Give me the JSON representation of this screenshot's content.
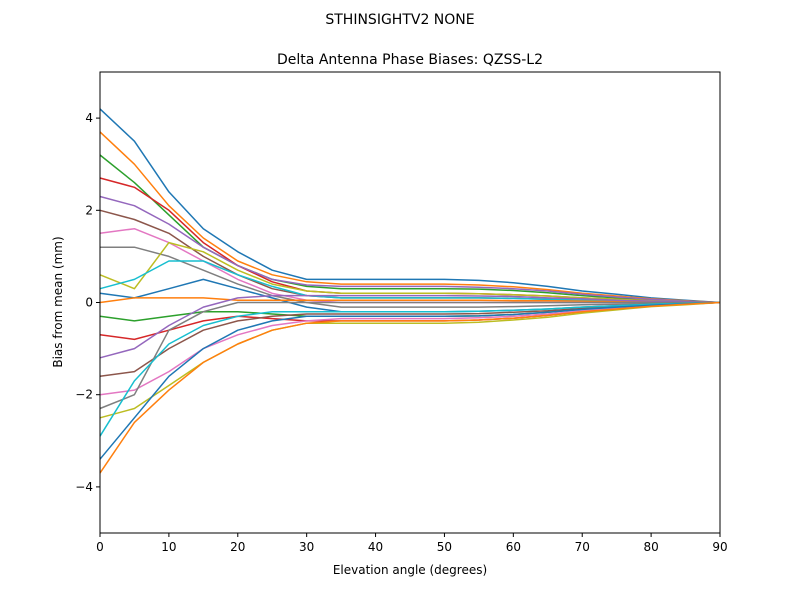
{
  "chart_data": {
    "type": "line",
    "suptitle": "STHINSIGHTV2    NONE",
    "title": "Delta Antenna Phase Biases: QZSS-L2",
    "xlabel": "Elevation angle (degrees)",
    "ylabel": "Bias from mean (mm)",
    "xlim": [
      0,
      90
    ],
    "ylim": [
      -5,
      5
    ],
    "xticks": [
      0,
      10,
      20,
      30,
      40,
      50,
      60,
      70,
      80,
      90
    ],
    "xtick_labels": [
      "0",
      "10",
      "20",
      "30",
      "40",
      "50",
      "60",
      "70",
      "80",
      "90"
    ],
    "yticks": [
      -4,
      -2,
      0,
      2,
      4
    ],
    "ytick_labels": [
      "−4",
      "−2",
      "0",
      "2",
      "4"
    ],
    "grid": false,
    "colors": [
      "#1f77b4",
      "#ff7f0e",
      "#2ca02c",
      "#d62728",
      "#9467bd",
      "#8c564b",
      "#e377c2",
      "#7f7f7f",
      "#bcbd22",
      "#17becf"
    ],
    "x": [
      0,
      5,
      10,
      15,
      20,
      25,
      30,
      35,
      40,
      45,
      50,
      55,
      60,
      65,
      70,
      75,
      80,
      85,
      90
    ],
    "series": [
      {
        "values": [
          4.2,
          3.5,
          2.4,
          1.6,
          1.1,
          0.7,
          0.5,
          0.5,
          0.5,
          0.5,
          0.5,
          0.48,
          0.43,
          0.35,
          0.25,
          0.18,
          0.1,
          0.05,
          0
        ]
      },
      {
        "values": [
          3.7,
          3.0,
          2.1,
          1.4,
          0.9,
          0.6,
          0.45,
          0.4,
          0.4,
          0.4,
          0.4,
          0.38,
          0.34,
          0.28,
          0.2,
          0.14,
          0.08,
          0.04,
          0
        ]
      },
      {
        "values": [
          3.2,
          2.6,
          1.9,
          1.2,
          0.8,
          0.5,
          0.35,
          0.3,
          0.3,
          0.3,
          0.3,
          0.29,
          0.26,
          0.21,
          0.15,
          0.1,
          0.06,
          0.03,
          0
        ]
      },
      {
        "values": [
          2.7,
          2.5,
          2.0,
          1.3,
          0.8,
          0.45,
          0.25,
          0.2,
          0.2,
          0.2,
          0.2,
          0.19,
          0.17,
          0.14,
          0.1,
          0.07,
          0.04,
          0.02,
          0
        ]
      },
      {
        "values": [
          2.3,
          2.1,
          1.7,
          1.2,
          0.8,
          0.5,
          0.38,
          0.35,
          0.35,
          0.35,
          0.35,
          0.33,
          0.3,
          0.25,
          0.18,
          0.12,
          0.07,
          0.03,
          0
        ]
      },
      {
        "values": [
          2.0,
          1.8,
          1.5,
          1.0,
          0.6,
          0.3,
          0.15,
          0.1,
          0.1,
          0.1,
          0.1,
          0.1,
          0.09,
          0.07,
          0.05,
          0.04,
          0.02,
          0.01,
          0
        ]
      },
      {
        "values": [
          1.5,
          1.6,
          1.3,
          0.9,
          0.5,
          0.2,
          0.05,
          0,
          0,
          0,
          0,
          0,
          0,
          0,
          0,
          0,
          0,
          0,
          0
        ]
      },
      {
        "values": [
          1.2,
          1.2,
          1.0,
          0.7,
          0.4,
          0.15,
          0,
          -0.1,
          -0.1,
          -0.1,
          -0.1,
          -0.1,
          -0.09,
          -0.07,
          -0.05,
          -0.04,
          -0.02,
          -0.01,
          0
        ]
      },
      {
        "values": [
          0.6,
          0.3,
          1.3,
          1.1,
          0.7,
          0.4,
          0.25,
          0.2,
          0.2,
          0.2,
          0.2,
          0.19,
          0.17,
          0.14,
          0.1,
          0.07,
          0.04,
          0.02,
          0
        ]
      },
      {
        "values": [
          0.3,
          0.5,
          0.9,
          0.9,
          0.6,
          0.35,
          0.15,
          0.1,
          0.1,
          0.1,
          0.1,
          0.1,
          0.09,
          0.07,
          0.05,
          0.04,
          0.02,
          0.01,
          0
        ]
      },
      {
        "values": [
          0.2,
          0.1,
          0.3,
          0.5,
          0.3,
          0.1,
          -0.1,
          -0.2,
          -0.2,
          -0.2,
          -0.2,
          -0.19,
          -0.17,
          -0.14,
          -0.1,
          -0.07,
          -0.04,
          -0.02,
          0
        ]
      },
      {
        "values": [
          0,
          0.1,
          0.1,
          0.1,
          0.05,
          0.05,
          0.05,
          0.05,
          0.05,
          0.05,
          0.05,
          0.05,
          0.04,
          0.04,
          0.03,
          0.02,
          0.01,
          0.01,
          0
        ]
      },
      {
        "values": [
          -0.3,
          -0.4,
          -0.3,
          -0.2,
          -0.2,
          -0.25,
          -0.3,
          -0.3,
          -0.3,
          -0.3,
          -0.3,
          -0.29,
          -0.26,
          -0.21,
          -0.15,
          -0.1,
          -0.06,
          -0.03,
          0
        ]
      },
      {
        "values": [
          -0.7,
          -0.8,
          -0.6,
          -0.4,
          -0.3,
          -0.35,
          -0.4,
          -0.4,
          -0.4,
          -0.4,
          -0.4,
          -0.38,
          -0.34,
          -0.28,
          -0.2,
          -0.14,
          -0.08,
          -0.04,
          0
        ]
      },
      {
        "values": [
          -1.2,
          -1.0,
          -0.5,
          -0.1,
          0.1,
          0.15,
          0.15,
          0.15,
          0.15,
          0.15,
          0.15,
          0.14,
          0.13,
          0.1,
          0.08,
          0.05,
          0.03,
          0.02,
          0
        ]
      },
      {
        "values": [
          -1.6,
          -1.5,
          -1.0,
          -0.6,
          -0.4,
          -0.3,
          -0.25,
          -0.25,
          -0.25,
          -0.25,
          -0.25,
          -0.24,
          -0.21,
          -0.18,
          -0.13,
          -0.09,
          -0.05,
          -0.03,
          0
        ]
      },
      {
        "values": [
          -2.0,
          -1.9,
          -1.5,
          -1.0,
          -0.7,
          -0.5,
          -0.4,
          -0.35,
          -0.35,
          -0.35,
          -0.35,
          -0.33,
          -0.3,
          -0.25,
          -0.18,
          -0.12,
          -0.07,
          -0.03,
          0
        ]
      },
      {
        "values": [
          -2.3,
          -2.0,
          -0.6,
          -0.2,
          0,
          0,
          0,
          0,
          0,
          0,
          0,
          0,
          0,
          0,
          0,
          0,
          0,
          0,
          0
        ]
      },
      {
        "values": [
          -2.5,
          -2.3,
          -1.8,
          -1.3,
          -0.9,
          -0.6,
          -0.45,
          -0.45,
          -0.45,
          -0.45,
          -0.45,
          -0.43,
          -0.38,
          -0.32,
          -0.23,
          -0.16,
          -0.09,
          -0.05,
          0
        ]
      },
      {
        "values": [
          -2.9,
          -1.7,
          -0.9,
          -0.5,
          -0.3,
          -0.2,
          -0.2,
          -0.2,
          -0.2,
          -0.2,
          -0.2,
          -0.19,
          -0.17,
          -0.14,
          -0.1,
          -0.07,
          -0.04,
          -0.02,
          0
        ]
      },
      {
        "values": [
          -3.4,
          -2.5,
          -1.6,
          -1.0,
          -0.6,
          -0.4,
          -0.3,
          -0.3,
          -0.3,
          -0.3,
          -0.3,
          -0.29,
          -0.26,
          -0.21,
          -0.15,
          -0.1,
          -0.06,
          -0.03,
          0
        ]
      },
      {
        "values": [
          -3.7,
          -2.6,
          -1.9,
          -1.3,
          -0.9,
          -0.6,
          -0.45,
          -0.4,
          -0.4,
          -0.4,
          -0.4,
          -0.38,
          -0.34,
          -0.28,
          -0.2,
          -0.14,
          -0.08,
          -0.04,
          0
        ]
      }
    ]
  }
}
